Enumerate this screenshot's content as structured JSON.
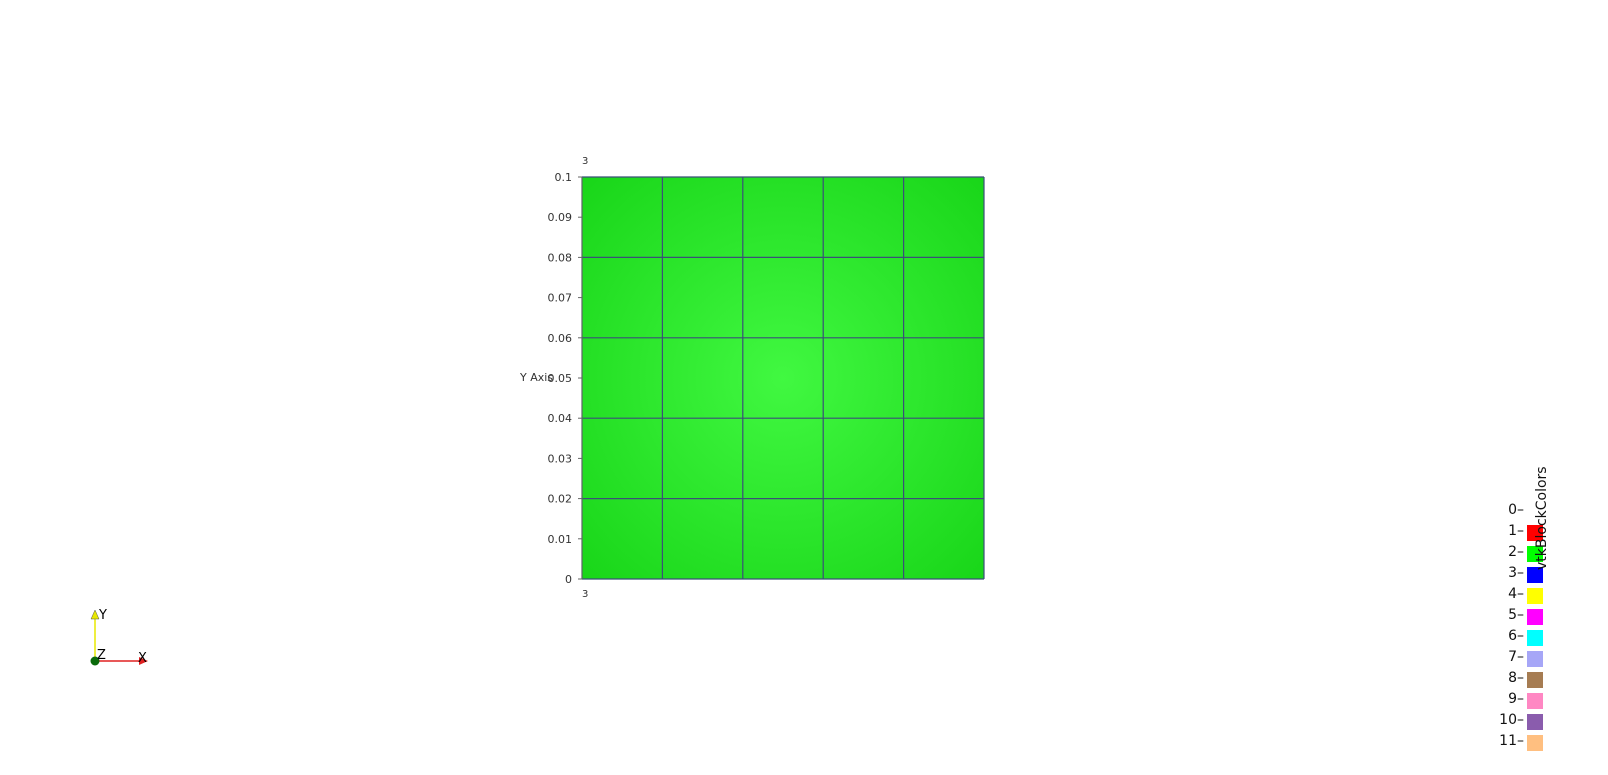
{
  "axes": {
    "y_title": "Y Axis",
    "corner_top": "3",
    "corner_bottom": "3",
    "y_ticks": [
      "0",
      "0.01",
      "0.02",
      "0.03",
      "0.04",
      "0.05",
      "0.06",
      "0.07",
      "0.08",
      "0.09",
      "0.1"
    ]
  },
  "mesh": {
    "fill_color": "#19d619",
    "center_color": "#41f841",
    "edge_color": "#3a5078",
    "grid_cells_x": 5,
    "grid_cells_y": 5
  },
  "triad": {
    "x_label": "X",
    "y_label": "Y",
    "z_label": "Z",
    "x_color": "#e02020",
    "y_color": "#e8e800",
    "z_color": "#0a6a0a"
  },
  "legend": {
    "title": "vtkBlockColors",
    "entries": [
      {
        "label": "0",
        "color": ""
      },
      {
        "label": "1",
        "color": "#ff0000"
      },
      {
        "label": "2",
        "color": "#00ff00"
      },
      {
        "label": "3",
        "color": "#0000ff"
      },
      {
        "label": "4",
        "color": "#ffff00"
      },
      {
        "label": "5",
        "color": "#ff00ff"
      },
      {
        "label": "6",
        "color": "#00ffff"
      },
      {
        "label": "7",
        "color": "#a6a6f7"
      },
      {
        "label": "8",
        "color": "#a67c52"
      },
      {
        "label": "9",
        "color": "#ff87c3"
      },
      {
        "label": "10",
        "color": "#8a5cad"
      },
      {
        "label": "11",
        "color": "#ffbf80"
      }
    ]
  }
}
